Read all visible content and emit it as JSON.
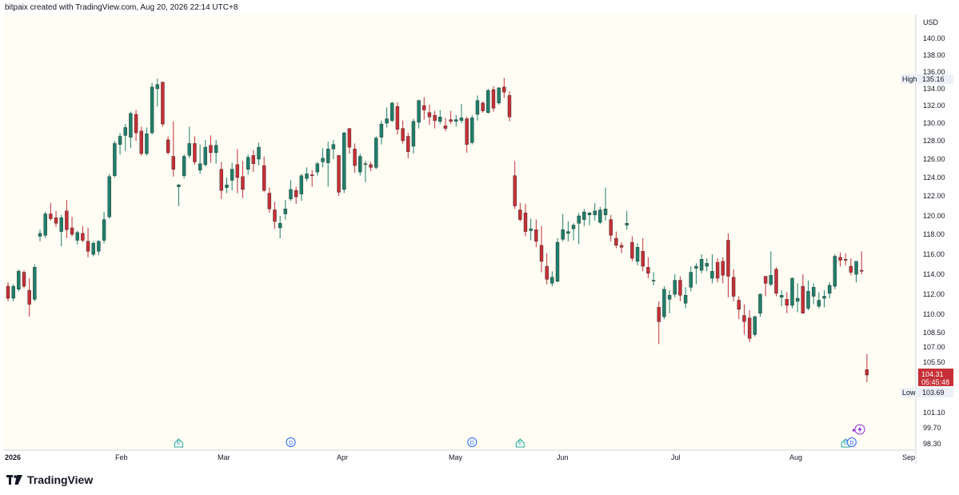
{
  "header": {
    "attribution": "bitpaix created with TradingView.com, Aug 20, 2026 22:14 UTC+8"
  },
  "footer": {
    "brand": "TradingView",
    "logo_icon": "tradingview-logo-icon"
  },
  "colors": {
    "up": "#1e7f6a",
    "down": "#c62f37",
    "background": "#fffdf4",
    "axis_text": "#131722",
    "event_earnings": "#26a69a",
    "event_dividend": "#2962ff"
  },
  "chart_data": {
    "type": "candlestick",
    "currency_label": "USD",
    "y_ticks": [
      "140.00",
      "138.00",
      "136.00",
      "134.00",
      "132.00",
      "130.00",
      "128.00",
      "126.00",
      "124.00",
      "122.00",
      "120.00",
      "118.00",
      "116.00",
      "114.00",
      "112.00",
      "110.00",
      "108.50",
      "107.00",
      "105.50",
      "104.00",
      "102.50",
      "101.10",
      "99.70",
      "98.30"
    ],
    "x_labels": [
      "2026",
      "Feb",
      "Mar",
      "Apr",
      "May",
      "Jun",
      "Jul",
      "Aug",
      "Sep"
    ],
    "high_marker": {
      "label": "High",
      "value": "135.16"
    },
    "low_marker": {
      "label": "Low",
      "value": "103.69"
    },
    "last_price": {
      "value": "104.31",
      "countdown": "05:45:48"
    },
    "events": [
      {
        "type": "E",
        "date_index": 32
      },
      {
        "type": "D",
        "date_index": 53
      },
      {
        "type": "D",
        "date_index": 87
      },
      {
        "type": "E",
        "date_index": 96
      },
      {
        "type": "E",
        "date_index": 157
      },
      {
        "type": "D",
        "date_index": 158
      }
    ],
    "candles": [
      [
        112.8,
        113.2,
        111.3,
        111.6
      ],
      [
        111.6,
        113.0,
        111.3,
        112.8
      ],
      [
        112.5,
        114.5,
        112.3,
        114.3
      ],
      [
        114.2,
        114.4,
        112.6,
        112.8
      ],
      [
        112.4,
        113.6,
        109.8,
        111.0
      ],
      [
        111.5,
        115.0,
        111.3,
        114.7
      ],
      [
        117.8,
        118.5,
        117.3,
        118.1
      ],
      [
        117.9,
        120.4,
        117.6,
        120.2
      ],
      [
        120.2,
        121.3,
        119.5,
        119.7
      ],
      [
        119.8,
        120.5,
        118.8,
        119.2
      ],
      [
        118.3,
        120.1,
        116.8,
        119.8
      ],
      [
        120.5,
        121.6,
        117.6,
        118.5
      ],
      [
        118.7,
        119.9,
        117.8,
        118.0
      ],
      [
        117.4,
        118.4,
        117.0,
        118.2
      ],
      [
        118.1,
        118.9,
        117.2,
        117.4
      ],
      [
        117.3,
        118.7,
        115.7,
        116.3
      ],
      [
        116.0,
        117.3,
        115.8,
        117.1
      ],
      [
        116.3,
        117.4,
        115.9,
        117.3
      ],
      [
        117.4,
        120.4,
        117.1,
        119.6
      ],
      [
        119.9,
        124.4,
        119.7,
        124.1
      ],
      [
        124.2,
        128.0,
        124.0,
        127.7
      ],
      [
        127.6,
        128.9,
        126.5,
        128.5
      ],
      [
        128.6,
        129.9,
        126.9,
        129.5
      ],
      [
        128.4,
        131.3,
        127.2,
        131.1
      ],
      [
        131.0,
        131.5,
        128.0,
        128.9
      ],
      [
        129.1,
        129.6,
        126.4,
        126.6
      ],
      [
        126.6,
        129.5,
        126.4,
        128.8
      ],
      [
        128.9,
        134.7,
        128.7,
        134.2
      ],
      [
        134.0,
        135.2,
        131.9,
        134.5
      ],
      [
        134.8,
        134.8,
        129.6,
        129.9
      ],
      [
        128.1,
        128.5,
        126.5,
        126.7
      ],
      [
        126.3,
        130.2,
        124.1,
        124.9
      ],
      [
        123.0,
        123.3,
        121.0,
        123.2
      ],
      [
        124.2,
        126.5,
        123.9,
        126.3
      ],
      [
        126.4,
        129.6,
        126.1,
        127.7
      ],
      [
        127.7,
        128.5,
        125.4,
        125.7
      ],
      [
        124.8,
        127.6,
        124.4,
        125.5
      ],
      [
        125.4,
        128.1,
        125.2,
        127.3
      ],
      [
        127.5,
        128.6,
        125.6,
        126.7
      ],
      [
        126.7,
        128.1,
        125.5,
        127.5
      ],
      [
        124.9,
        125.7,
        121.7,
        122.6
      ],
      [
        122.9,
        124.0,
        122.3,
        123.2
      ],
      [
        123.7,
        125.6,
        122.6,
        124.9
      ],
      [
        125.4,
        127.1,
        122.3,
        124.0
      ],
      [
        124.1,
        125.8,
        121.8,
        122.7
      ],
      [
        124.9,
        126.5,
        124.3,
        126.2
      ],
      [
        126.4,
        127.0,
        124.6,
        125.5
      ],
      [
        126.0,
        127.8,
        125.3,
        127.3
      ],
      [
        125.3,
        126.3,
        122.4,
        122.6
      ],
      [
        122.3,
        122.9,
        120.3,
        120.7
      ],
      [
        120.6,
        121.4,
        118.6,
        119.4
      ],
      [
        118.7,
        120.0,
        117.6,
        119.2
      ],
      [
        120.2,
        121.6,
        119.6,
        120.7
      ],
      [
        121.7,
        123.7,
        121.5,
        122.7
      ],
      [
        122.6,
        123.0,
        121.2,
        121.9
      ],
      [
        122.2,
        124.4,
        121.5,
        124.2
      ],
      [
        123.9,
        125.1,
        123.6,
        124.4
      ],
      [
        124.3,
        124.8,
        123.0,
        124.2
      ],
      [
        124.6,
        125.7,
        124.2,
        125.5
      ],
      [
        125.7,
        127.2,
        125.1,
        126.1
      ],
      [
        125.6,
        127.9,
        123.0,
        127.1
      ],
      [
        127.1,
        128.1,
        126.0,
        127.6
      ],
      [
        126.4,
        126.4,
        122.0,
        122.4
      ],
      [
        122.7,
        129.0,
        122.3,
        128.9
      ],
      [
        129.4,
        129.4,
        126.6,
        127.3
      ],
      [
        127.1,
        127.7,
        124.5,
        125.3
      ],
      [
        124.6,
        126.6,
        124.2,
        126.3
      ],
      [
        125.5,
        125.8,
        123.5,
        125.5
      ],
      [
        125.4,
        125.7,
        124.7,
        125.1
      ],
      [
        125.1,
        128.5,
        124.9,
        128.3
      ],
      [
        128.4,
        130.3,
        127.6,
        129.9
      ],
      [
        130.0,
        131.8,
        129.5,
        130.5
      ],
      [
        130.3,
        132.4,
        130.1,
        132.3
      ],
      [
        131.9,
        132.4,
        128.7,
        129.3
      ],
      [
        129.4,
        130.3,
        127.7,
        128.0
      ],
      [
        128.5,
        128.9,
        126.1,
        126.8
      ],
      [
        127.4,
        130.5,
        126.6,
        130.2
      ],
      [
        130.1,
        132.7,
        129.4,
        132.6
      ],
      [
        132.0,
        133.0,
        130.4,
        131.5
      ],
      [
        131.2,
        132.1,
        129.8,
        130.7
      ],
      [
        130.9,
        131.4,
        129.4,
        130.3
      ],
      [
        130.2,
        131.5,
        129.9,
        130.7
      ],
      [
        129.7,
        130.6,
        129.1,
        129.4
      ],
      [
        130.4,
        131.4,
        129.9,
        130.2
      ],
      [
        130.2,
        130.9,
        129.6,
        130.4
      ],
      [
        130.3,
        132.2,
        130.0,
        130.6
      ],
      [
        130.5,
        130.7,
        126.7,
        127.6
      ],
      [
        127.8,
        130.9,
        127.6,
        130.6
      ],
      [
        131.0,
        133.2,
        130.3,
        132.6
      ],
      [
        132.3,
        132.5,
        131.2,
        131.4
      ],
      [
        131.2,
        134.0,
        131.1,
        133.8
      ],
      [
        133.9,
        134.3,
        131.3,
        131.7
      ],
      [
        132.3,
        134.2,
        132.1,
        134.1
      ],
      [
        134.2,
        135.3,
        132.9,
        133.6
      ],
      [
        133.2,
        133.7,
        130.2,
        130.7
      ],
      [
        124.2,
        125.8,
        120.7,
        121.0
      ],
      [
        120.6,
        121.3,
        119.4,
        119.6
      ],
      [
        120.3,
        121.2,
        117.8,
        118.3
      ],
      [
        118.4,
        119.7,
        117.4,
        118.6
      ],
      [
        118.5,
        119.6,
        116.7,
        117.3
      ],
      [
        116.9,
        118.9,
        114.2,
        115.3
      ],
      [
        114.8,
        116.1,
        113.0,
        113.5
      ],
      [
        113.1,
        114.3,
        112.8,
        113.7
      ],
      [
        113.3,
        117.6,
        113.2,
        117.2
      ],
      [
        117.5,
        120.2,
        117.3,
        118.5
      ],
      [
        118.1,
        119.4,
        117.3,
        118.3
      ],
      [
        118.6,
        119.2,
        117.4,
        119.0
      ],
      [
        119.2,
        120.3,
        117.0,
        120.0
      ],
      [
        119.6,
        120.7,
        118.9,
        120.4
      ],
      [
        120.1,
        120.4,
        119.0,
        120.3
      ],
      [
        120.1,
        121.3,
        119.5,
        120.5
      ],
      [
        119.3,
        120.9,
        119.1,
        120.6
      ],
      [
        120.1,
        122.9,
        119.5,
        120.7
      ],
      [
        119.6,
        120.1,
        117.3,
        117.9
      ],
      [
        117.6,
        118.3,
        116.6,
        116.9
      ],
      [
        116.9,
        117.2,
        116.1,
        116.7
      ],
      [
        119.0,
        120.5,
        118.5,
        119.2
      ],
      [
        117.2,
        117.8,
        115.3,
        115.6
      ],
      [
        115.3,
        117.1,
        114.9,
        116.7
      ],
      [
        116.3,
        117.6,
        114.3,
        114.8
      ],
      [
        114.7,
        115.7,
        113.6,
        114.1
      ],
      [
        113.4,
        114.2,
        112.9,
        113.4
      ],
      [
        110.7,
        111.3,
        107.3,
        109.4
      ],
      [
        109.8,
        112.8,
        109.6,
        112.5
      ],
      [
        111.5,
        112.4,
        110.1,
        111.9
      ],
      [
        112.0,
        114.0,
        111.7,
        113.4
      ],
      [
        113.4,
        113.8,
        111.3,
        111.9
      ],
      [
        111.1,
        112.7,
        110.6,
        111.9
      ],
      [
        112.7,
        114.8,
        112.3,
        114.2
      ],
      [
        114.6,
        115.1,
        113.0,
        114.8
      ],
      [
        114.4,
        116.0,
        114.1,
        115.5
      ],
      [
        114.8,
        115.6,
        114.3,
        115.1
      ],
      [
        113.6,
        116.0,
        113.1,
        114.3
      ],
      [
        115.2,
        115.6,
        113.2,
        113.6
      ],
      [
        115.3,
        115.7,
        113.1,
        113.9
      ],
      [
        117.4,
        118.1,
        111.7,
        113.8
      ],
      [
        113.7,
        114.5,
        111.3,
        111.8
      ],
      [
        111.4,
        111.8,
        109.6,
        110.5
      ],
      [
        109.9,
        111.0,
        108.3,
        109.4
      ],
      [
        109.7,
        110.4,
        107.5,
        107.9
      ],
      [
        108.3,
        109.9,
        108.1,
        109.8
      ],
      [
        110.1,
        112.1,
        109.8,
        112.0
      ],
      [
        113.8,
        113.8,
        111.8,
        113.1
      ],
      [
        113.0,
        116.3,
        112.8,
        113.9
      ],
      [
        114.5,
        114.7,
        111.8,
        112.1
      ],
      [
        111.7,
        112.4,
        110.8,
        111.9
      ],
      [
        111.5,
        112.2,
        110.1,
        110.9
      ],
      [
        110.9,
        113.7,
        110.6,
        113.6
      ],
      [
        111.3,
        113.1,
        110.2,
        111.6
      ],
      [
        112.8,
        114.0,
        110.1,
        110.1
      ],
      [
        110.6,
        113.4,
        110.4,
        112.3
      ],
      [
        111.8,
        113.1,
        111.0,
        112.7
      ],
      [
        110.8,
        112.2,
        110.6,
        111.4
      ],
      [
        111.6,
        112.4,
        110.7,
        111.8
      ],
      [
        112.1,
        113.2,
        111.6,
        112.9
      ],
      [
        112.8,
        116.0,
        112.5,
        115.8
      ],
      [
        115.7,
        116.2,
        114.8,
        115.4
      ],
      [
        115.5,
        116.1,
        114.9,
        115.4
      ],
      [
        114.8,
        115.6,
        113.9,
        114.2
      ],
      [
        114.0,
        115.3,
        113.2,
        115.3
      ],
      [
        114.4,
        116.3,
        114.0,
        114.3
      ],
      [
        104.8,
        106.3,
        103.6,
        104.3
      ]
    ]
  }
}
